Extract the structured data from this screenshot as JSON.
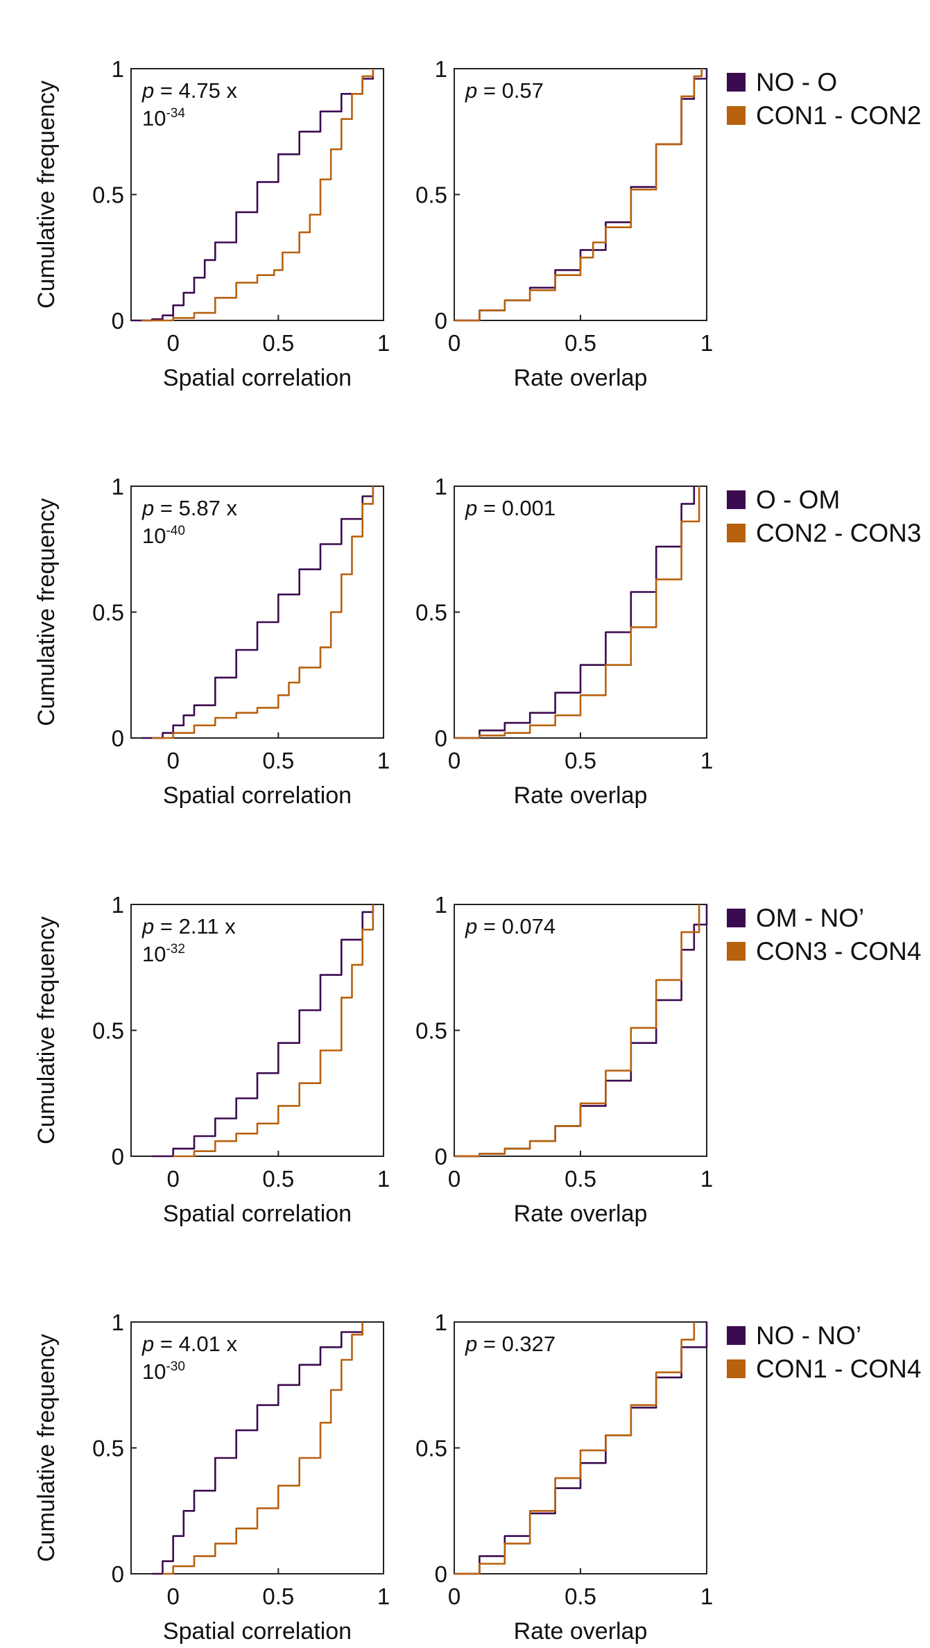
{
  "colors": {
    "series1": "#3b0a4f",
    "series2": "#b8610f",
    "axis": "#222222"
  },
  "chart_data": [
    {
      "type": "line",
      "panel": "row1-spatial",
      "xlabel": "Spatial correlation",
      "ylabel": "Cumulative frequency",
      "xlim": [
        -0.2,
        1
      ],
      "ylim": [
        0,
        1
      ],
      "xticks": [
        "0",
        "0.5",
        "1"
      ],
      "yticks": [
        "0",
        "0.5",
        "1"
      ],
      "annotation": {
        "italic": "p",
        "main": " = 4.75 x",
        "base": "10",
        "exp": "-34"
      },
      "series": [
        {
          "name": "NO - O",
          "x": [
            -0.2,
            -0.1,
            -0.05,
            0,
            0.05,
            0.1,
            0.15,
            0.2,
            0.3,
            0.4,
            0.5,
            0.6,
            0.7,
            0.8,
            0.9,
            0.95
          ],
          "y": [
            0,
            0.005,
            0.02,
            0.06,
            0.11,
            0.17,
            0.24,
            0.31,
            0.43,
            0.55,
            0.66,
            0.75,
            0.83,
            0.9,
            0.96,
            1
          ]
        },
        {
          "name": "CON1 - CON2",
          "x": [
            -0.15,
            0,
            0.1,
            0.2,
            0.3,
            0.4,
            0.48,
            0.52,
            0.6,
            0.65,
            0.7,
            0.75,
            0.8,
            0.85,
            0.9,
            0.95
          ],
          "y": [
            0,
            0.01,
            0.03,
            0.09,
            0.15,
            0.18,
            0.2,
            0.27,
            0.35,
            0.42,
            0.56,
            0.68,
            0.8,
            0.9,
            0.97,
            1
          ]
        }
      ]
    },
    {
      "type": "line",
      "panel": "row1-rate",
      "xlabel": "Rate overlap",
      "ylabel": "",
      "xlim": [
        0,
        1
      ],
      "ylim": [
        0,
        1
      ],
      "xticks": [
        "0",
        "0.5",
        "1"
      ],
      "yticks": [
        "0",
        "0.5",
        "1"
      ],
      "annotation": {
        "italic": "p",
        "main": " = 0.57",
        "base": "",
        "exp": ""
      },
      "series": [
        {
          "name": "NO - O",
          "x": [
            0,
            0.1,
            0.2,
            0.3,
            0.4,
            0.5,
            0.6,
            0.7,
            0.8,
            0.9,
            0.95,
            1
          ],
          "y": [
            0,
            0.04,
            0.08,
            0.13,
            0.2,
            0.28,
            0.39,
            0.53,
            0.7,
            0.88,
            0.96,
            1
          ]
        },
        {
          "name": "CON1 - CON2",
          "x": [
            0,
            0.1,
            0.2,
            0.3,
            0.4,
            0.5,
            0.55,
            0.6,
            0.7,
            0.8,
            0.9,
            0.95,
            0.98
          ],
          "y": [
            0,
            0.04,
            0.08,
            0.12,
            0.18,
            0.25,
            0.31,
            0.37,
            0.52,
            0.7,
            0.89,
            0.97,
            1
          ]
        }
      ]
    },
    {
      "type": "line",
      "panel": "row2-spatial",
      "xlabel": "Spatial correlation",
      "ylabel": "Cumulative frequency",
      "xlim": [
        -0.2,
        1
      ],
      "ylim": [
        0,
        1
      ],
      "xticks": [
        "0",
        "0.5",
        "1"
      ],
      "yticks": [
        "0",
        "0.5",
        "1"
      ],
      "annotation": {
        "italic": "p",
        "main": " = 5.87 x",
        "base": "10",
        "exp": "-40"
      },
      "series": [
        {
          "name": "O - OM",
          "x": [
            -0.15,
            -0.05,
            0,
            0.05,
            0.1,
            0.2,
            0.3,
            0.4,
            0.5,
            0.6,
            0.7,
            0.8,
            0.9,
            0.95
          ],
          "y": [
            0,
            0.02,
            0.05,
            0.09,
            0.13,
            0.24,
            0.35,
            0.46,
            0.57,
            0.67,
            0.77,
            0.87,
            0.96,
            1
          ]
        },
        {
          "name": "CON2 - CON3",
          "x": [
            -0.1,
            0,
            0.1,
            0.2,
            0.3,
            0.4,
            0.5,
            0.55,
            0.6,
            0.7,
            0.75,
            0.8,
            0.85,
            0.9,
            0.95
          ],
          "y": [
            0,
            0.02,
            0.05,
            0.08,
            0.1,
            0.12,
            0.17,
            0.22,
            0.28,
            0.36,
            0.5,
            0.65,
            0.8,
            0.93,
            1
          ]
        }
      ]
    },
    {
      "type": "line",
      "panel": "row2-rate",
      "xlabel": "Rate overlap",
      "ylabel": "",
      "xlim": [
        0,
        1
      ],
      "ylim": [
        0,
        1
      ],
      "xticks": [
        "0",
        "0.5",
        "1"
      ],
      "yticks": [
        "0",
        "0.5",
        "1"
      ],
      "annotation": {
        "italic": "p",
        "main": " = 0.001",
        "base": "",
        "exp": ""
      },
      "series": [
        {
          "name": "O - OM",
          "x": [
            0,
            0.1,
            0.2,
            0.3,
            0.4,
            0.5,
            0.6,
            0.7,
            0.8,
            0.9,
            0.95
          ],
          "y": [
            0,
            0.03,
            0.06,
            0.1,
            0.18,
            0.29,
            0.42,
            0.58,
            0.76,
            0.93,
            1
          ]
        },
        {
          "name": "CON2 - CON3",
          "x": [
            0,
            0.1,
            0.2,
            0.3,
            0.4,
            0.5,
            0.6,
            0.7,
            0.8,
            0.9,
            0.97
          ],
          "y": [
            0,
            0.01,
            0.02,
            0.05,
            0.09,
            0.17,
            0.29,
            0.44,
            0.63,
            0.86,
            1
          ]
        }
      ]
    },
    {
      "type": "line",
      "panel": "row3-spatial",
      "xlabel": "Spatial correlation",
      "ylabel": "Cumulative frequency",
      "xlim": [
        -0.2,
        1
      ],
      "ylim": [
        0,
        1
      ],
      "xticks": [
        "0",
        "0.5",
        "1"
      ],
      "yticks": [
        "0",
        "0.5",
        "1"
      ],
      "annotation": {
        "italic": "p",
        "main": " = 2.11 x",
        "base": "10",
        "exp": "-32"
      },
      "series": [
        {
          "name": "OM - NO’",
          "x": [
            -0.1,
            0,
            0.1,
            0.2,
            0.3,
            0.4,
            0.5,
            0.6,
            0.7,
            0.8,
            0.9,
            0.95
          ],
          "y": [
            0,
            0.03,
            0.08,
            0.15,
            0.23,
            0.33,
            0.45,
            0.58,
            0.72,
            0.86,
            0.97,
            1
          ]
        },
        {
          "name": "CON3 - CON4",
          "x": [
            0,
            0.1,
            0.2,
            0.3,
            0.4,
            0.5,
            0.6,
            0.7,
            0.8,
            0.85,
            0.9,
            0.95
          ],
          "y": [
            0,
            0.02,
            0.06,
            0.09,
            0.13,
            0.2,
            0.29,
            0.42,
            0.63,
            0.76,
            0.9,
            1
          ]
        }
      ]
    },
    {
      "type": "line",
      "panel": "row3-rate",
      "xlabel": "Rate overlap",
      "ylabel": "",
      "xlim": [
        0,
        1
      ],
      "ylim": [
        0,
        1
      ],
      "xticks": [
        "0",
        "0.5",
        "1"
      ],
      "yticks": [
        "0",
        "0.5",
        "1"
      ],
      "annotation": {
        "italic": "p",
        "main": " = 0.074",
        "base": "",
        "exp": ""
      },
      "series": [
        {
          "name": "OM - NO’",
          "x": [
            0,
            0.1,
            0.2,
            0.3,
            0.4,
            0.5,
            0.6,
            0.7,
            0.8,
            0.9,
            0.95,
            1
          ],
          "y": [
            0,
            0.01,
            0.03,
            0.06,
            0.12,
            0.2,
            0.3,
            0.45,
            0.62,
            0.82,
            0.92,
            1
          ]
        },
        {
          "name": "CON3 - CON4",
          "x": [
            0,
            0.1,
            0.2,
            0.3,
            0.4,
            0.5,
            0.6,
            0.7,
            0.8,
            0.9,
            0.97
          ],
          "y": [
            0,
            0.01,
            0.03,
            0.06,
            0.12,
            0.21,
            0.34,
            0.51,
            0.7,
            0.89,
            1
          ]
        }
      ]
    },
    {
      "type": "line",
      "panel": "row4-spatial",
      "xlabel": "Spatial correlation",
      "ylabel": "Cumulative frequency",
      "xlim": [
        -0.2,
        1
      ],
      "ylim": [
        0,
        1
      ],
      "xticks": [
        "0",
        "0.5",
        "1"
      ],
      "yticks": [
        "0",
        "0.5",
        "1"
      ],
      "annotation": {
        "italic": "p",
        "main": " = 4.01 x",
        "base": "10",
        "exp": "-30"
      },
      "series": [
        {
          "name": "NO - NO’",
          "x": [
            -0.1,
            -0.05,
            0,
            0.05,
            0.1,
            0.2,
            0.3,
            0.4,
            0.5,
            0.6,
            0.7,
            0.8,
            0.9
          ],
          "y": [
            0,
            0.05,
            0.15,
            0.25,
            0.33,
            0.46,
            0.57,
            0.67,
            0.75,
            0.83,
            0.9,
            0.96,
            1
          ]
        },
        {
          "name": "CON1 - CON4",
          "x": [
            -0.05,
            0,
            0.1,
            0.2,
            0.3,
            0.4,
            0.5,
            0.6,
            0.7,
            0.75,
            0.8,
            0.85,
            0.9
          ],
          "y": [
            0,
            0.03,
            0.07,
            0.12,
            0.18,
            0.26,
            0.35,
            0.46,
            0.6,
            0.73,
            0.85,
            0.95,
            1
          ]
        }
      ]
    },
    {
      "type": "line",
      "panel": "row4-rate",
      "xlabel": "Rate overlap",
      "ylabel": "",
      "xlim": [
        0,
        1
      ],
      "ylim": [
        0,
        1
      ],
      "xticks": [
        "0",
        "0.5",
        "1"
      ],
      "yticks": [
        "0",
        "0.5",
        "1"
      ],
      "annotation": {
        "italic": "p",
        "main": " = 0.327",
        "base": "",
        "exp": ""
      },
      "series": [
        {
          "name": "NO - NO’",
          "x": [
            0,
            0.1,
            0.2,
            0.3,
            0.4,
            0.5,
            0.6,
            0.7,
            0.8,
            0.9,
            1
          ],
          "y": [
            0,
            0.07,
            0.15,
            0.24,
            0.34,
            0.44,
            0.55,
            0.66,
            0.78,
            0.9,
            1
          ]
        },
        {
          "name": "CON1 - CON4",
          "x": [
            0,
            0.1,
            0.2,
            0.3,
            0.4,
            0.5,
            0.6,
            0.7,
            0.8,
            0.9,
            0.95
          ],
          "y": [
            0,
            0.04,
            0.12,
            0.25,
            0.38,
            0.49,
            0.55,
            0.67,
            0.8,
            0.93,
            1
          ]
        }
      ]
    }
  ],
  "legends": [
    {
      "items": [
        "NO - O",
        "CON1 - CON2"
      ]
    },
    {
      "items": [
        "O - OM",
        "CON2 - CON3"
      ]
    },
    {
      "items": [
        "OM - NO’",
        "CON3 - CON4"
      ]
    },
    {
      "items": [
        "NO - NO’",
        "CON1 - CON4"
      ]
    }
  ]
}
